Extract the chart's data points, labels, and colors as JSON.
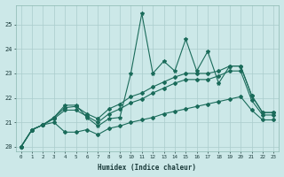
{
  "xlabel": "Humidex (Indice chaleur)",
  "background_color": "#cce8e8",
  "grid_color": "#aacccc",
  "line_color": "#1a6b5a",
  "xlim": [
    -0.5,
    23.5
  ],
  "ylim": [
    19.8,
    25.8
  ],
  "yticks": [
    20,
    21,
    22,
    23,
    24,
    25
  ],
  "xticks": [
    0,
    1,
    2,
    3,
    4,
    5,
    6,
    7,
    8,
    9,
    10,
    11,
    12,
    13,
    14,
    15,
    16,
    17,
    18,
    19,
    20,
    21,
    22,
    23
  ],
  "x": [
    0,
    1,
    2,
    3,
    4,
    5,
    6,
    7,
    8,
    9,
    10,
    11,
    12,
    13,
    14,
    15,
    16,
    17,
    18,
    19,
    20,
    21,
    22,
    23
  ],
  "y_jagged": [
    20.0,
    20.7,
    20.9,
    21.2,
    21.7,
    21.7,
    21.2,
    20.85,
    21.15,
    21.2,
    23.0,
    25.45,
    23.0,
    23.5,
    23.1,
    24.4,
    23.1,
    23.9,
    22.6,
    23.3,
    23.3,
    22.1,
    21.4,
    21.4
  ],
  "y_max": [
    20.0,
    20.7,
    20.9,
    21.2,
    21.6,
    21.65,
    21.35,
    21.15,
    21.55,
    21.75,
    22.05,
    22.2,
    22.45,
    22.65,
    22.85,
    23.0,
    23.0,
    23.0,
    23.1,
    23.3,
    23.3,
    22.1,
    21.4,
    21.4
  ],
  "y_mean": [
    20.0,
    20.7,
    20.9,
    21.15,
    21.5,
    21.5,
    21.25,
    21.0,
    21.35,
    21.55,
    21.8,
    21.95,
    22.2,
    22.4,
    22.6,
    22.75,
    22.75,
    22.75,
    22.9,
    23.1,
    23.1,
    21.9,
    21.3,
    21.3
  ],
  "y_min": [
    20.0,
    20.7,
    20.9,
    21.0,
    20.6,
    20.6,
    20.7,
    20.5,
    20.75,
    20.85,
    21.0,
    21.1,
    21.2,
    21.35,
    21.45,
    21.55,
    21.65,
    21.75,
    21.85,
    21.95,
    22.05,
    21.5,
    21.1,
    21.1
  ]
}
